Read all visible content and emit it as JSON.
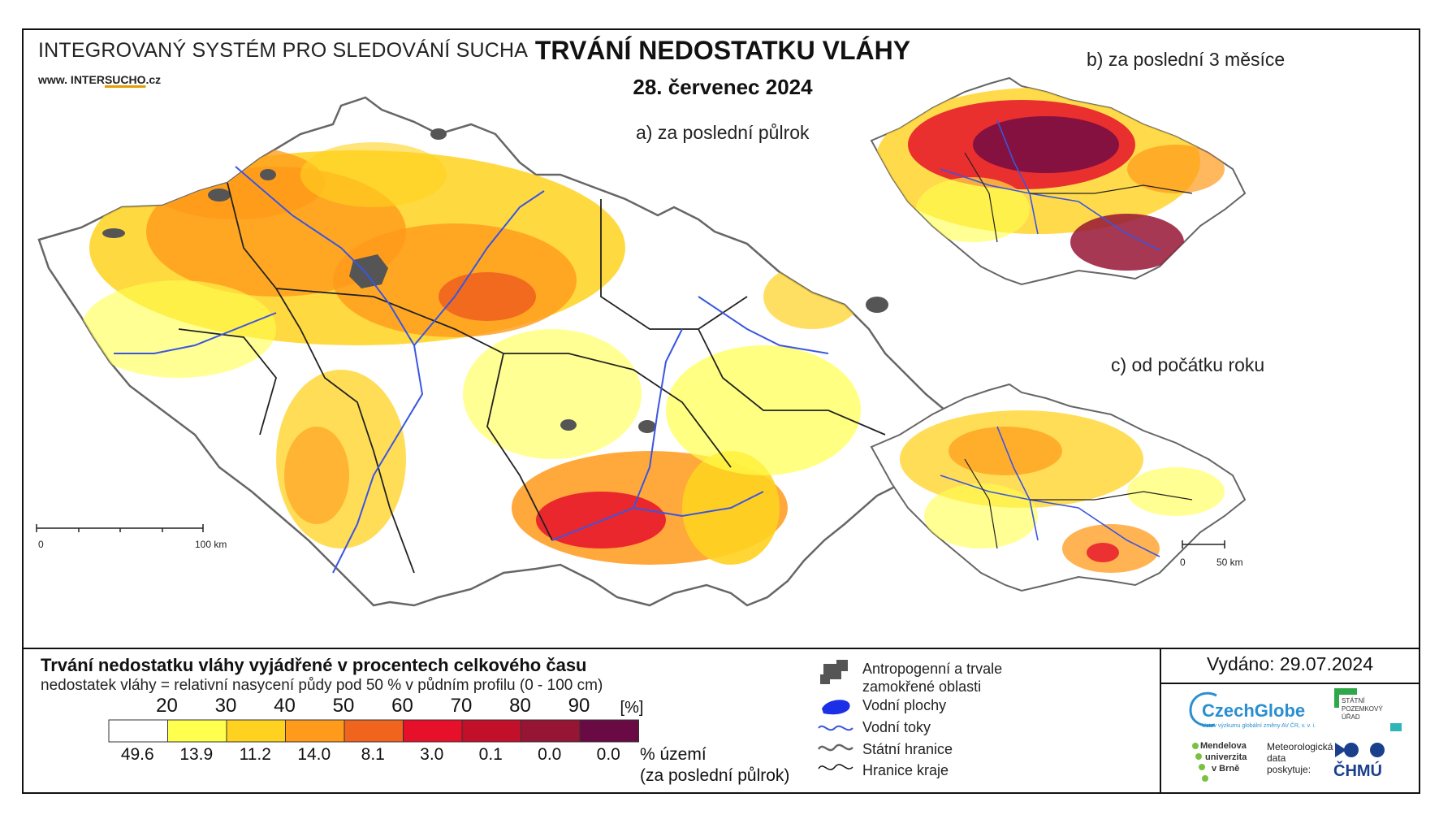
{
  "header": {
    "system_title": "INTEGROVANÝ SYSTÉM PRO SLEDOVÁNÍ SUCHA",
    "website_prefix": "www. INTER",
    "website_brand": "SUCHO",
    "website_suffix": ".cz",
    "main_title": "TRVÁNÍ NEDOSTATKU VLÁHY",
    "date": "28. červenec 2024"
  },
  "maps": {
    "a": {
      "label": "a) za poslední půlrok",
      "scale_zero": "0",
      "scale_end": "100 km"
    },
    "b": {
      "label": "b) za poslední 3 měsíce"
    },
    "c": {
      "label": "c) od počátku roku",
      "scale_zero": "0",
      "scale_end": "50 km"
    }
  },
  "legend": {
    "title": "Trvání nedostatku vláhy vyjádřené v procentech celkového času",
    "subtitle": "nedostatek vláhy = relativní nasycení půdy pod 50 % v půdním profilu (0 - 100 cm)",
    "unit": "[%]",
    "thresholds": [
      "20",
      "30",
      "40",
      "50",
      "60",
      "70",
      "80",
      "90"
    ],
    "classes": [
      {
        "color": "#ffffff",
        "pct": "49.6"
      },
      {
        "color": "#ffff4d",
        "pct": "13.9"
      },
      {
        "color": "#ffd21f",
        "pct": "11.2"
      },
      {
        "color": "#ff9a1a",
        "pct": "14.0"
      },
      {
        "color": "#f0641e",
        "pct": "8.1"
      },
      {
        "color": "#e6102a",
        "pct": "3.0"
      },
      {
        "color": "#c2102a",
        "pct": "0.1"
      },
      {
        "color": "#961535",
        "pct": "0.0"
      },
      {
        "color": "#6a0a45",
        "pct": "0.0"
      }
    ],
    "pct_caption_1": "% území",
    "pct_caption_2": "(za poslední půlrok)"
  },
  "symbols": {
    "urban": "Antropogenní a trvale zamokřené oblasti",
    "water_bodies": "Vodní plochy",
    "rivers": "Vodní toky",
    "state_border": "Státní hranice",
    "region_border": "Hranice kraje"
  },
  "issued": "Vydáno: 29.07.2024",
  "logos": {
    "czechglobe": "CzechGlobe",
    "czechglobe_sub": "Ústav výzkumu globální změny AV ČR, v. v. i.",
    "spu_1": "STÁTNÍ",
    "spu_2": "POZEMKOVÝ",
    "spu_3": "ÚŘAD",
    "mendelu_1": "Mendelova",
    "mendelu_2": "univerzita",
    "mendelu_3": "v Brně",
    "met_1": "Meteorologická",
    "met_2": "data",
    "met_3": "poskytuje:",
    "chmu": "ČHMÚ"
  }
}
